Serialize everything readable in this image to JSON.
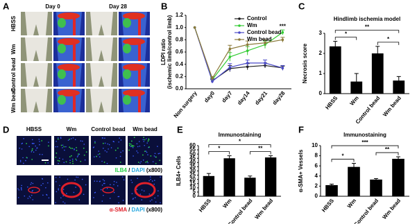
{
  "panel_a": {
    "label": "A",
    "columns": [
      "Day 0",
      "Day 28"
    ],
    "rows": [
      "HBSS",
      "Wm",
      "Control bead",
      "Wm bead"
    ]
  },
  "panel_d": {
    "label": "D",
    "columns": [
      "HBSS",
      "Wm",
      "Control bead",
      "Wm bead"
    ],
    "stains": [
      [
        "ILB4",
        " / ",
        "DAPI",
        " (x800)"
      ],
      [
        "α-SMA",
        " / ",
        "DAPI",
        " (x800)"
      ]
    ]
  },
  "chart_data": [
    {
      "type": "line",
      "label": "B",
      "ylabel": [
        "LDPI ratio",
        "(ischemic limb/control limb)"
      ],
      "categories": [
        "Non surgery",
        "day0",
        "day7",
        "day14",
        "day21",
        "day28"
      ],
      "ylim": [
        0,
        1.2
      ],
      "yticks": [
        {
          "value": 0,
          "label": "0.0"
        },
        0.2,
        0.4,
        0.6,
        0.8,
        {
          "value": 1,
          "label": "1.0"
        },
        1.2
      ],
      "legend": "top-right",
      "series": [
        {
          "name": "Control",
          "color": "#1a1a1a",
          "values": [
            1.0,
            0.13,
            0.33,
            0.36,
            0.38,
            0.34
          ],
          "errors": [
            0,
            0.03,
            0.05,
            0.05,
            0.04,
            0.03
          ]
        },
        {
          "name": "Wm",
          "color": "#33cc33",
          "values": [
            1.0,
            0.15,
            0.52,
            0.62,
            0.72,
            0.92
          ],
          "errors": [
            0,
            0.03,
            0.07,
            0.07,
            0.06,
            0.04
          ]
        },
        {
          "name": "Control bead",
          "color": "#4a4ac8",
          "values": [
            1.0,
            0.12,
            0.35,
            0.42,
            0.42,
            0.34
          ],
          "errors": [
            0,
            0.03,
            0.06,
            0.05,
            0.05,
            0.04
          ]
        },
        {
          "name": "Wm bead",
          "color": "#8b7a3a",
          "values": [
            1.0,
            0.17,
            0.65,
            0.72,
            0.75,
            0.8
          ],
          "errors": [
            0,
            0.03,
            0.06,
            0.06,
            0.05,
            0.04
          ]
        }
      ],
      "annotations": [
        {
          "text": "***",
          "at": 5
        }
      ]
    },
    {
      "type": "bar",
      "label": "C",
      "title": "Hindlimb ischemia model",
      "ylabel": [
        "Necrosis score"
      ],
      "categories": [
        "HBSS",
        "Wm",
        "Control bead",
        "Wm bead"
      ],
      "color": "#000000",
      "values": [
        2.35,
        0.6,
        2.0,
        0.65
      ],
      "errors": [
        0.25,
        0.4,
        0.35,
        0.2
      ],
      "ylim": [
        0,
        3
      ],
      "yticks": [
        0,
        1,
        2,
        3
      ],
      "annotations": [
        {
          "text": "*",
          "between": [
            0,
            1
          ]
        },
        {
          "text": "**",
          "between": [
            0,
            3
          ]
        },
        {
          "text": "*",
          "between": [
            2,
            3
          ]
        }
      ]
    },
    {
      "type": "bar",
      "label": "E",
      "title": "Immunostaining",
      "ylabel": [
        "ILB4+ Cells"
      ],
      "categories": [
        "HBSS",
        "Wm",
        "Control bead",
        "Wm bead"
      ],
      "color": "#000000",
      "values": [
        24,
        45,
        22,
        46
      ],
      "errors": [
        3,
        3,
        2,
        2
      ],
      "ylim": [
        0,
        60
      ],
      "yticks": [
        0,
        5,
        10,
        15,
        20,
        25,
        30,
        35,
        40,
        45,
        50,
        55,
        60
      ],
      "annotations": [
        {
          "text": "*",
          "between": [
            0,
            1
          ]
        },
        {
          "text": "*",
          "between": [
            0,
            3
          ]
        },
        {
          "text": "**",
          "between": [
            2,
            3
          ]
        }
      ]
    },
    {
      "type": "bar",
      "label": "F",
      "title": "Immunostaining",
      "ylabel": [
        "α-SMA+ Vessels"
      ],
      "categories": [
        "HBSS",
        "Wm",
        "Control bead",
        "Wm bead"
      ],
      "color": "#000000",
      "values": [
        2.2,
        5.8,
        3.3,
        7.4
      ],
      "errors": [
        0.2,
        0.7,
        0.2,
        0.4
      ],
      "ylim": [
        0,
        10
      ],
      "yticks": [
        0,
        2,
        4,
        6,
        8,
        10
      ],
      "annotations": [
        {
          "text": "*",
          "between": [
            0,
            1
          ]
        },
        {
          "text": "***",
          "between": [
            0,
            3
          ]
        },
        {
          "text": "**",
          "between": [
            2,
            3
          ]
        }
      ]
    }
  ]
}
